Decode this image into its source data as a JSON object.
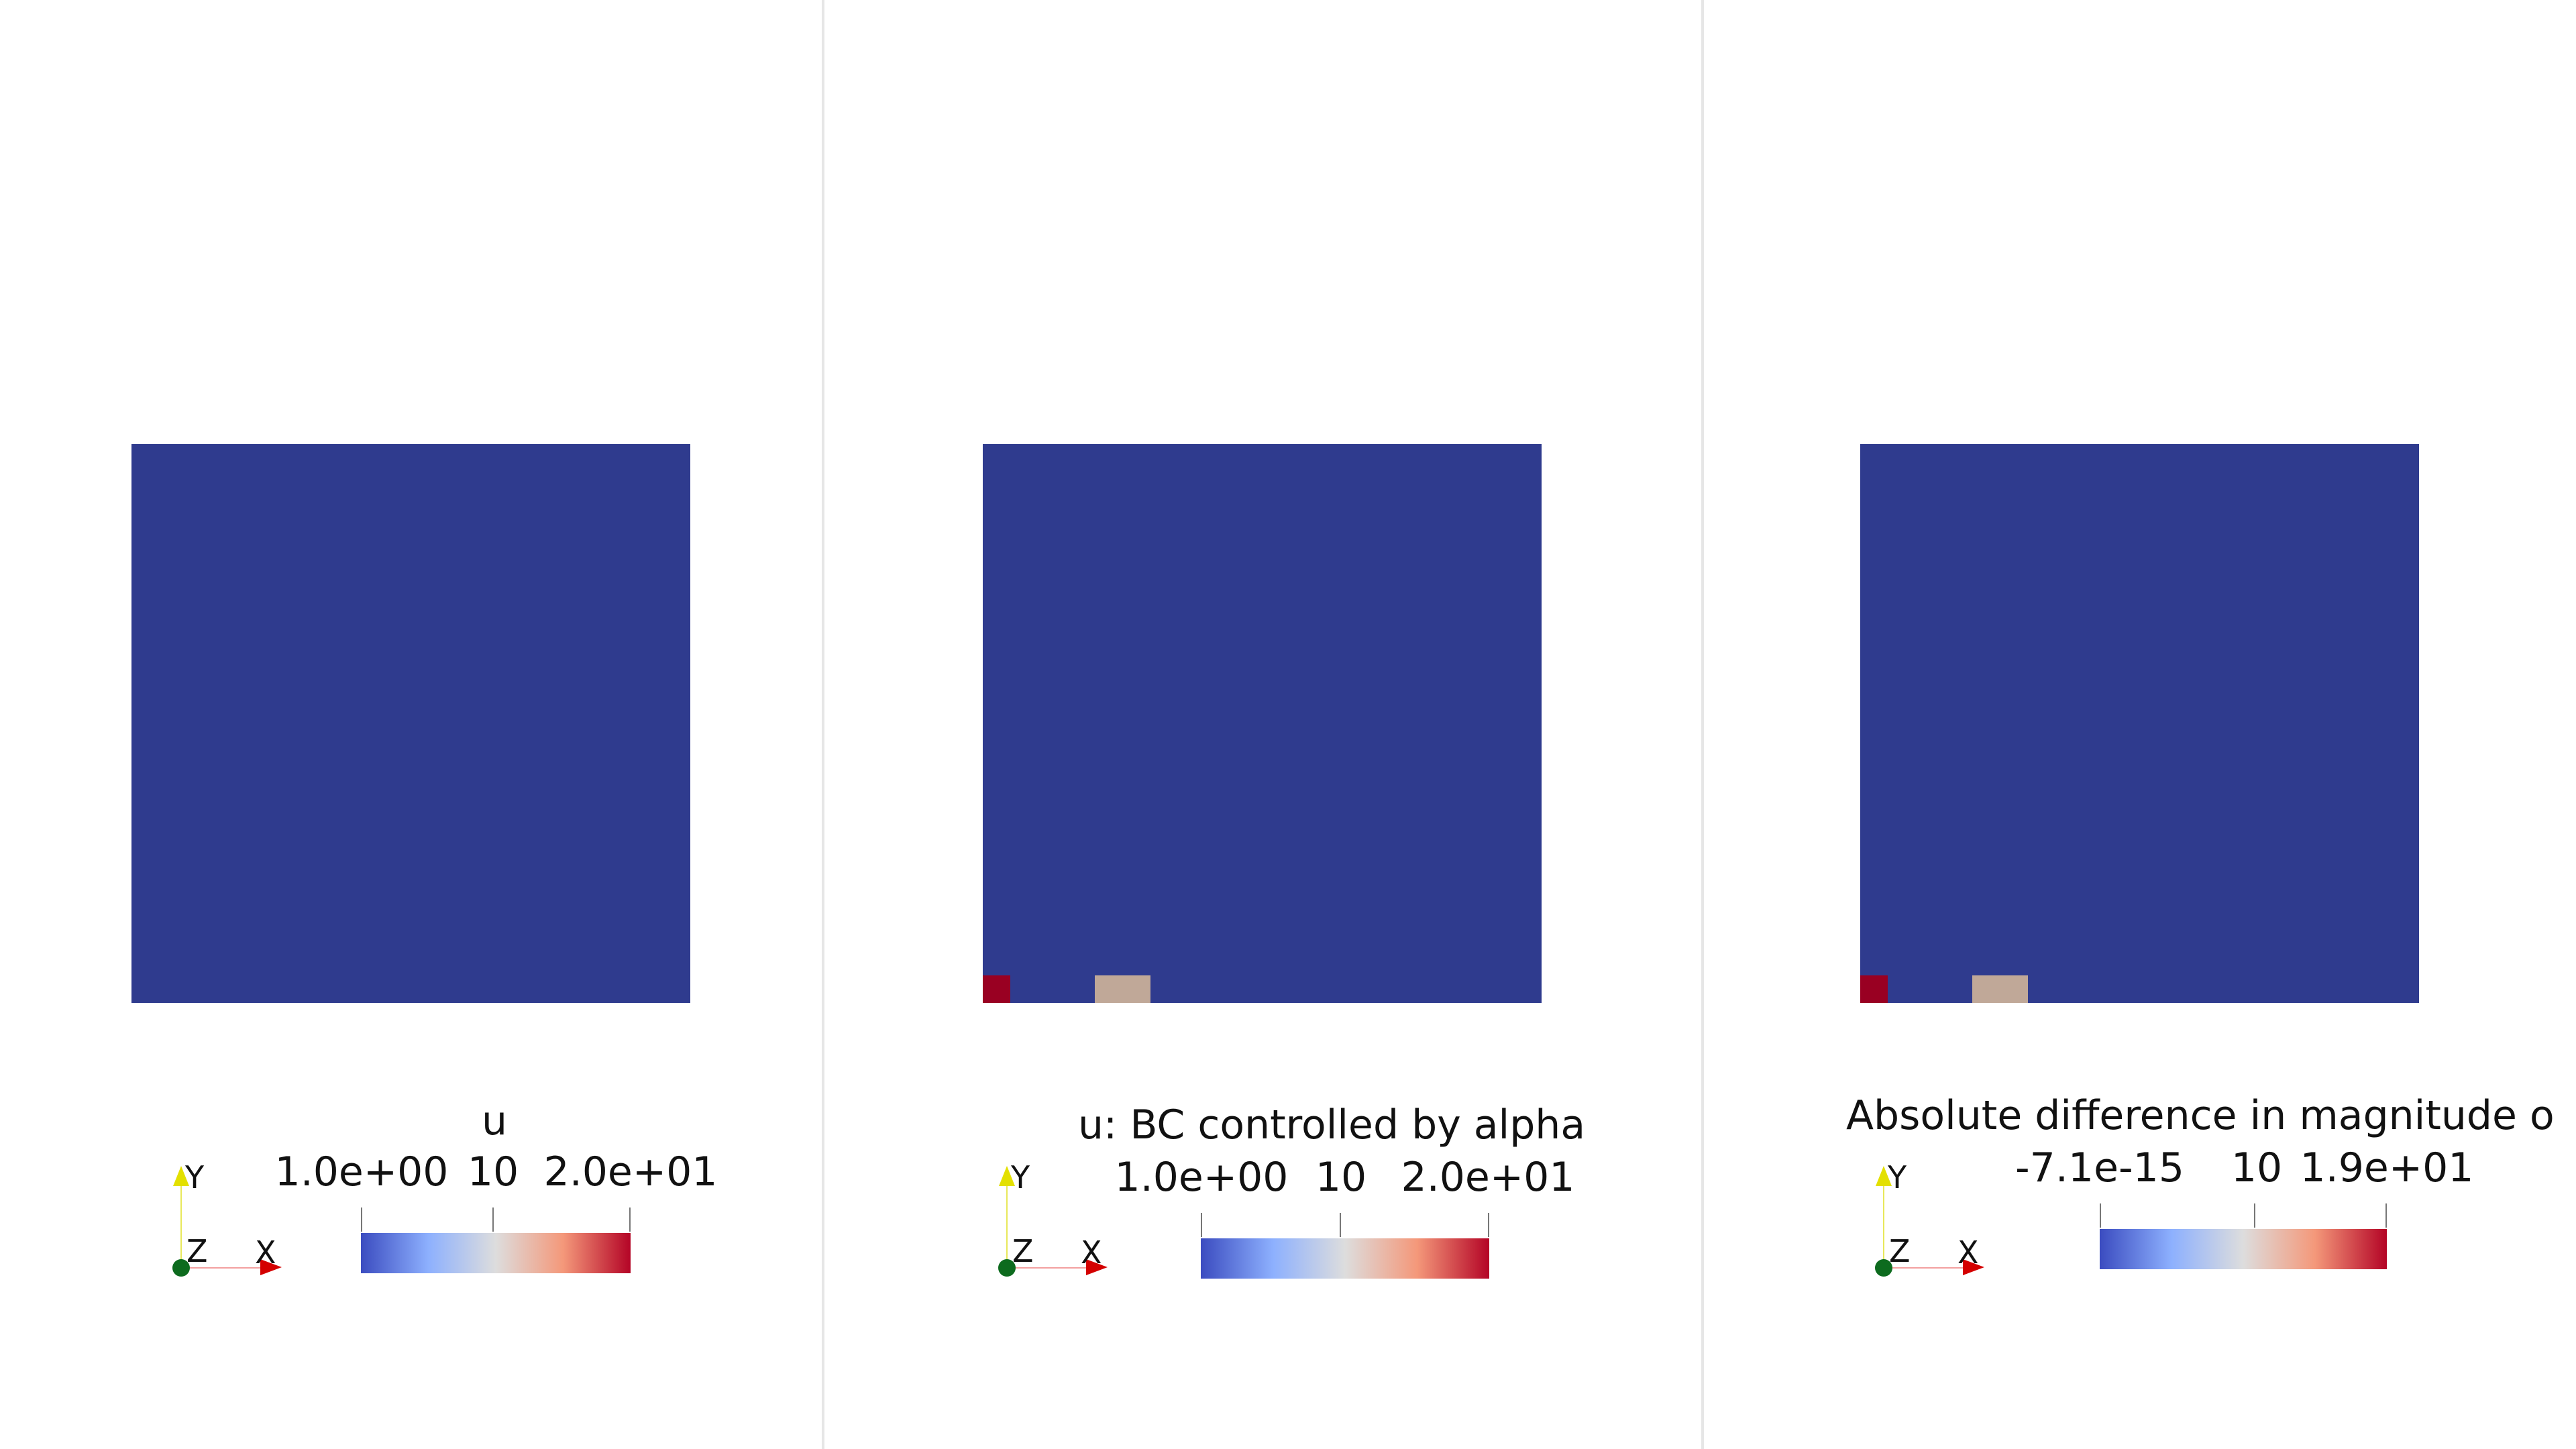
{
  "colors": {
    "domain": "#2f3b8e",
    "cell_red": "#990022",
    "cell_tan": "#c0a898",
    "colormap": [
      "#3b4cc0",
      "#8db0fe",
      "#dddddd",
      "#f4987a",
      "#b40426"
    ]
  },
  "views": [
    {
      "scalar_bar": {
        "title": "u",
        "min_label": "1.0e+00",
        "mid_label": "10",
        "max_label": "2.0e+01"
      },
      "axes": {
        "y": "Y",
        "z": "Z",
        "x": "X"
      }
    },
    {
      "scalar_bar": {
        "title": "u: BC controlled by alpha",
        "min_label": "1.0e+00",
        "mid_label": "10",
        "max_label": "2.0e+01"
      },
      "axes": {
        "y": "Y",
        "z": "Z",
        "x": "X"
      }
    },
    {
      "scalar_bar": {
        "title": "Absolute difference in magnitude o",
        "min_label": "-7.1e-15",
        "mid_label": "10",
        "max_label": "1.9e+01"
      },
      "axes": {
        "y": "Y",
        "z": "Z",
        "x": "X"
      }
    }
  ]
}
